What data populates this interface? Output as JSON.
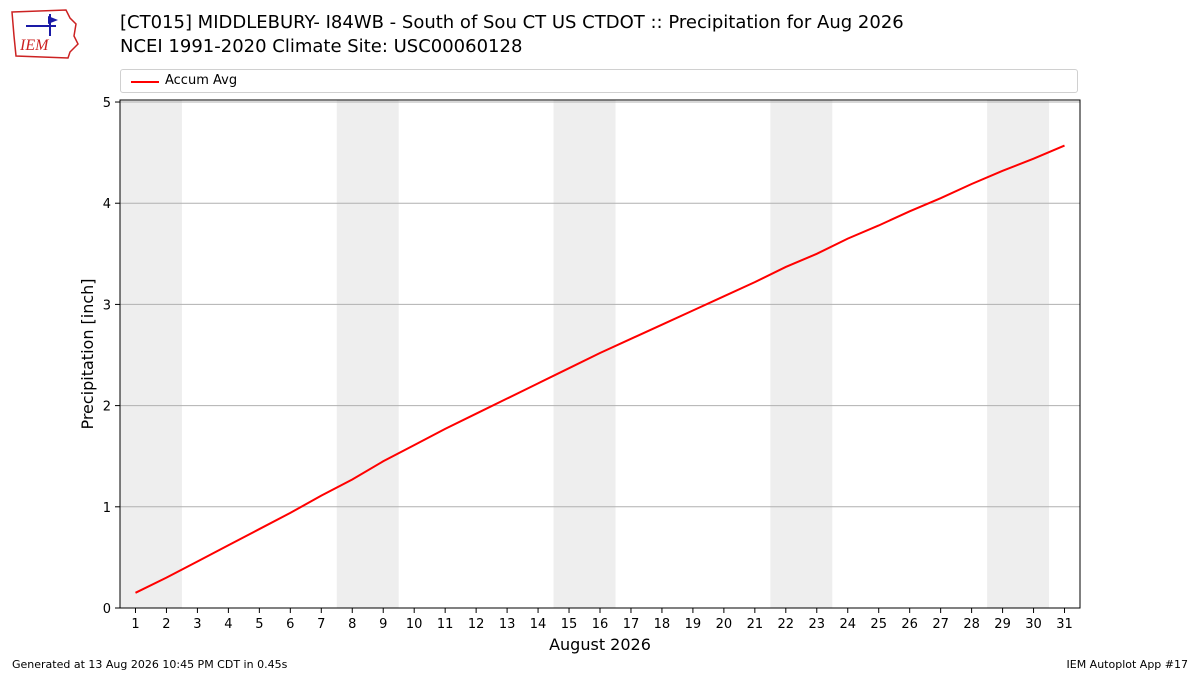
{
  "header": {
    "title_line1": "[CT015] MIDDLEBURY- I84WB - South of Sou CT US  CTDOT :: Precipitation for Aug 2026",
    "title_line2": "NCEI 1991-2020 Climate Site: USC00060128",
    "logo_text": "IEM"
  },
  "legend": {
    "entries": [
      "Accum Avg"
    ]
  },
  "footer": {
    "left": "Generated at 13 Aug 2026 10:45 PM CDT in 0.45s",
    "right": "IEM Autoplot App #17"
  },
  "colors": {
    "line": "#ff0000",
    "weekend_band": "#eeeeee",
    "grid": "#b0b0b0",
    "logo_red": "#cc2222",
    "logo_blue": "#1a1aa6"
  },
  "chart_data": {
    "type": "line",
    "xlabel": "August 2026",
    "ylabel": "Precipitation [inch]",
    "x": [
      1,
      2,
      3,
      4,
      5,
      6,
      7,
      8,
      9,
      10,
      11,
      12,
      13,
      14,
      15,
      16,
      17,
      18,
      19,
      20,
      21,
      22,
      23,
      24,
      25,
      26,
      27,
      28,
      29,
      30,
      31
    ],
    "series": [
      {
        "name": "Accum Avg",
        "values": [
          0.15,
          0.3,
          0.46,
          0.62,
          0.78,
          0.94,
          1.11,
          1.27,
          1.45,
          1.61,
          1.77,
          1.92,
          2.07,
          2.22,
          2.37,
          2.52,
          2.66,
          2.8,
          2.94,
          3.08,
          3.22,
          3.37,
          3.5,
          3.65,
          3.78,
          3.92,
          4.05,
          4.19,
          4.32,
          4.44,
          4.57
        ]
      }
    ],
    "xlim": [
      0.5,
      31.5
    ],
    "ylim": [
      0,
      5.02
    ],
    "yticks": [
      0,
      1,
      2,
      3,
      4,
      5
    ],
    "xticks": [
      "1",
      "2",
      "3",
      "4",
      "5",
      "6",
      "7",
      "8",
      "9",
      "10",
      "11",
      "12",
      "13",
      "14",
      "15",
      "16",
      "17",
      "18",
      "19",
      "20",
      "21",
      "22",
      "23",
      "24",
      "25",
      "26",
      "27",
      "28",
      "29",
      "30",
      "31"
    ],
    "weekend_bands": [
      [
        0.5,
        2.5
      ],
      [
        7.5,
        9.5
      ],
      [
        14.5,
        16.5
      ],
      [
        21.5,
        23.5
      ],
      [
        28.5,
        30.5
      ]
    ],
    "grid": "horizontal",
    "legend_position": "top"
  }
}
